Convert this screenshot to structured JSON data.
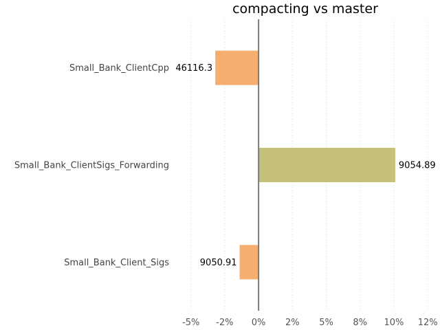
{
  "chart_data": {
    "type": "bar",
    "orientation": "horizontal",
    "title": "compacting vs master",
    "xlabel": "",
    "ylabel": "",
    "categories": [
      "Small_Bank_ClientCpp",
      "Small_Bank_ClientSigs_Forwarding",
      "Small_Bank_Client_Sigs"
    ],
    "values": [
      -3.2,
      10.1,
      -1.4
    ],
    "data_labels": [
      "46116.3",
      "9054.89",
      "9050.91"
    ],
    "colors": [
      "#f5ae70",
      "#c5c07a",
      "#f5ae70"
    ],
    "xticks": [
      -5,
      -2.5,
      0,
      2.5,
      5,
      7.5,
      10,
      12.5
    ],
    "xtick_labels": [
      "-5%",
      "-2%",
      "0%",
      "2%",
      "5%",
      "8%",
      "10%",
      "12%"
    ],
    "xlim": [
      -6,
      13
    ],
    "grid": true,
    "legend": "none"
  }
}
